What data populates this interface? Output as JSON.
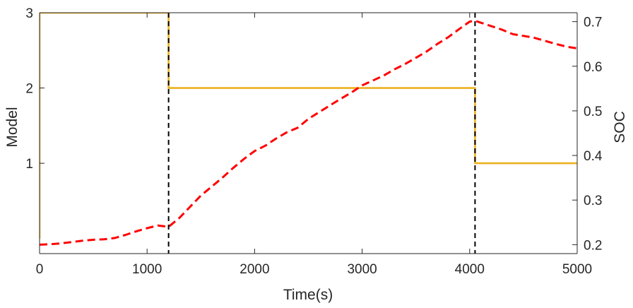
{
  "chart_data": {
    "type": "line",
    "title": "",
    "xlabel": "Time(s)",
    "ylabel_left": "Model",
    "ylabel_right": "SOC",
    "xlim": [
      0,
      5000
    ],
    "ylim_left": [
      -0.2,
      3.0
    ],
    "ylim_right": [
      0.18,
      0.72
    ],
    "xticks": [
      0,
      1000,
      2000,
      3000,
      4000,
      5000
    ],
    "yticks_left": [
      1,
      2,
      3
    ],
    "yticks_right": [
      0.2,
      0.3,
      0.4,
      0.5,
      0.6,
      0.7
    ],
    "grid": false,
    "series": [
      {
        "axis": "left",
        "style": "solid",
        "color": "#EDB120",
        "x": [
          0,
          0,
          1200,
          1200,
          4050,
          4050,
          5000
        ],
        "y": [
          0,
          3,
          3,
          2,
          2,
          1,
          1
        ]
      },
      {
        "axis": "right",
        "style": "dashed",
        "color": "#FF0000",
        "x": [
          0,
          100,
          200,
          300,
          400,
          500,
          600,
          700,
          800,
          900,
          1000,
          1100,
          1200,
          1300,
          1400,
          1500,
          1600,
          1700,
          1800,
          1900,
          2000,
          2100,
          2200,
          2300,
          2400,
          2500,
          2600,
          2700,
          2800,
          2900,
          3000,
          3100,
          3200,
          3300,
          3400,
          3500,
          3600,
          3700,
          3800,
          3900,
          4000,
          4050,
          4100,
          4200,
          4300,
          4400,
          4500,
          4600,
          4700,
          4800,
          4900,
          5000
        ],
        "y": [
          0.2,
          0.201,
          0.203,
          0.206,
          0.209,
          0.211,
          0.212,
          0.215,
          0.222,
          0.23,
          0.237,
          0.243,
          0.24,
          0.26,
          0.285,
          0.31,
          0.33,
          0.35,
          0.372,
          0.392,
          0.41,
          0.422,
          0.438,
          0.452,
          0.462,
          0.482,
          0.497,
          0.512,
          0.527,
          0.541,
          0.557,
          0.568,
          0.579,
          0.593,
          0.605,
          0.619,
          0.633,
          0.65,
          0.665,
          0.683,
          0.7,
          0.702,
          0.698,
          0.69,
          0.682,
          0.672,
          0.668,
          0.664,
          0.657,
          0.65,
          0.644,
          0.64
        ]
      }
    ],
    "vlines": {
      "style": "dashed",
      "color": "#000000",
      "x": [
        1200,
        4050
      ]
    }
  }
}
